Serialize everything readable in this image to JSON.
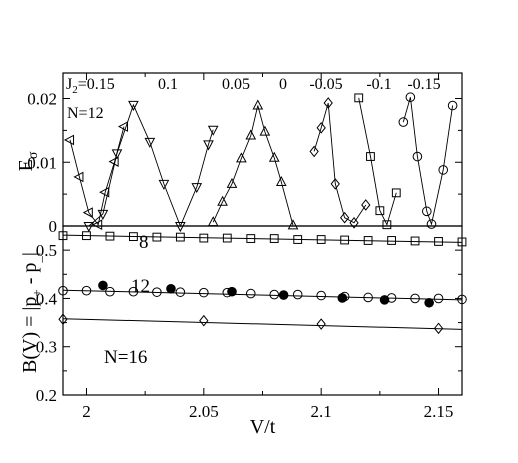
{
  "chart_data": [
    {
      "id": "top",
      "type": "scatter",
      "ylabel_main": "E",
      "ylabel_sub": "σ",
      "xlim": [
        1.99,
        2.16
      ],
      "ylim": [
        0,
        0.024
      ],
      "yticks": [
        0,
        0.01,
        0.02
      ],
      "ytick_labels": [
        "0",
        "0.01",
        "0.02"
      ],
      "annotations": {
        "n_label": "N=12",
        "j2_prefix": "J",
        "j2_sub": "2",
        "j2_first": "=0.15",
        "j2_values": [
          "0.1",
          "0.05",
          "0",
          "-0.05",
          "-0.1",
          "-0.15"
        ]
      },
      "series": [
        {
          "marker": "triangle-left",
          "x": [
            1.993,
            1.997,
            2.001,
            2.005,
            2.008,
            2.012,
            2.016
          ],
          "y": [
            0.0135,
            0.0077,
            0.0021,
            0.0002,
            0.0053,
            0.0101,
            0.0156
          ]
        },
        {
          "marker": "triangle-down",
          "x": [
            2.001,
            2.007,
            2.013,
            2.02,
            2.027,
            2.033,
            2.04,
            2.047,
            2.052,
            2.054
          ],
          "y": [
            0,
            0.0019,
            0.0114,
            0.019,
            0.0132,
            0.0066,
            0,
            0.0061,
            0.0128,
            0.0151
          ]
        },
        {
          "marker": "triangle-up",
          "x": [
            2.054,
            2.058,
            2.062,
            2.066,
            2.07,
            2.073,
            2.076,
            2.08,
            2.083,
            2.088
          ],
          "y": [
            0.0006,
            0.0038,
            0.0066,
            0.0106,
            0.0142,
            0.0189,
            0.0148,
            0.0107,
            0.0069,
            0.0001
          ]
        },
        {
          "marker": "diamond",
          "x": [
            2.097,
            2.1,
            2.103,
            2.106,
            2.11,
            2.114,
            2.119
          ],
          "y": [
            0.0117,
            0.0154,
            0.0193,
            0.0066,
            0.0013,
            0.0005,
            0.0033
          ]
        },
        {
          "marker": "square",
          "x": [
            2.116,
            2.121,
            2.125,
            2.128,
            2.132
          ],
          "y": [
            0.0201,
            0.0109,
            0.0024,
            0.0002,
            0.0052
          ]
        },
        {
          "marker": "circle",
          "x": [
            2.135,
            2.138,
            2.141,
            2.145,
            2.147,
            2.152,
            2.156
          ],
          "y": [
            0.0163,
            0.0202,
            0.0109,
            0.0023,
            0.0003,
            0.0088,
            0.0189
          ]
        }
      ]
    },
    {
      "id": "bottom",
      "type": "scatter",
      "xlabel": "V/t",
      "ylabel": "B(V) = |p  - p |",
      "ylabel_parts": [
        "B(V) = |p",
        "+",
        " - p",
        "_",
        "|"
      ],
      "xlim": [
        1.99,
        2.16
      ],
      "ylim": [
        0.2,
        0.55
      ],
      "xticks": [
        2,
        2.05,
        2.1,
        2.15
      ],
      "xtick_labels": [
        "2",
        "2.05",
        "2.1",
        "2.15"
      ],
      "yticks": [
        0.2,
        0.3,
        0.4,
        0.5
      ],
      "ytick_labels": [
        "0.2",
        "0.3",
        "0.4",
        "0.5"
      ],
      "annotations": {
        "n8": "8",
        "n12": "12",
        "n16": "N=16"
      },
      "series": [
        {
          "name": "8",
          "marker": "square",
          "fit": {
            "x0": 1.99,
            "y0": 0.531,
            "x1": 2.16,
            "y1": 0.516
          },
          "x": [
            1.99,
            2.0,
            2.01,
            2.02,
            2.03,
            2.04,
            2.05,
            2.06,
            2.07,
            2.08,
            2.09,
            2.1,
            2.11,
            2.12,
            2.13,
            2.14,
            2.15,
            2.16
          ],
          "y": [
            0.53,
            0.53,
            0.529,
            0.528,
            0.527,
            0.527,
            0.525,
            0.525,
            0.524,
            0.524,
            0.522,
            0.522,
            0.521,
            0.52,
            0.52,
            0.519,
            0.518,
            0.517
          ]
        },
        {
          "name": "12",
          "marker": "circle",
          "fit": {
            "x0": 1.99,
            "y0": 0.417,
            "x1": 2.16,
            "y1": 0.397
          },
          "x": [
            1.99,
            2.0,
            2.01,
            2.02,
            2.03,
            2.04,
            2.05,
            2.06,
            2.07,
            2.08,
            2.09,
            2.1,
            2.11,
            2.12,
            2.13,
            2.14,
            2.15,
            2.16
          ],
          "y": [
            0.416,
            0.416,
            0.414,
            0.414,
            0.413,
            0.413,
            0.412,
            0.412,
            0.41,
            0.408,
            0.408,
            0.406,
            0.404,
            0.402,
            0.401,
            0.4,
            0.4,
            0.398
          ]
        },
        {
          "name": "12 (filled)",
          "marker": "filled-circle",
          "x": [
            2.007,
            2.036,
            2.062,
            2.084,
            2.109,
            2.127,
            2.146
          ],
          "y": [
            0.427,
            0.42,
            0.414,
            0.407,
            0.401,
            0.397,
            0.391
          ]
        },
        {
          "name": "N=16",
          "marker": "diamond",
          "fit": {
            "x0": 1.99,
            "y0": 0.358,
            "x1": 2.16,
            "y1": 0.336
          },
          "x": [
            1.99,
            2.05,
            2.1,
            2.15
          ],
          "y": [
            0.357,
            0.354,
            0.347,
            0.338
          ]
        }
      ]
    }
  ]
}
